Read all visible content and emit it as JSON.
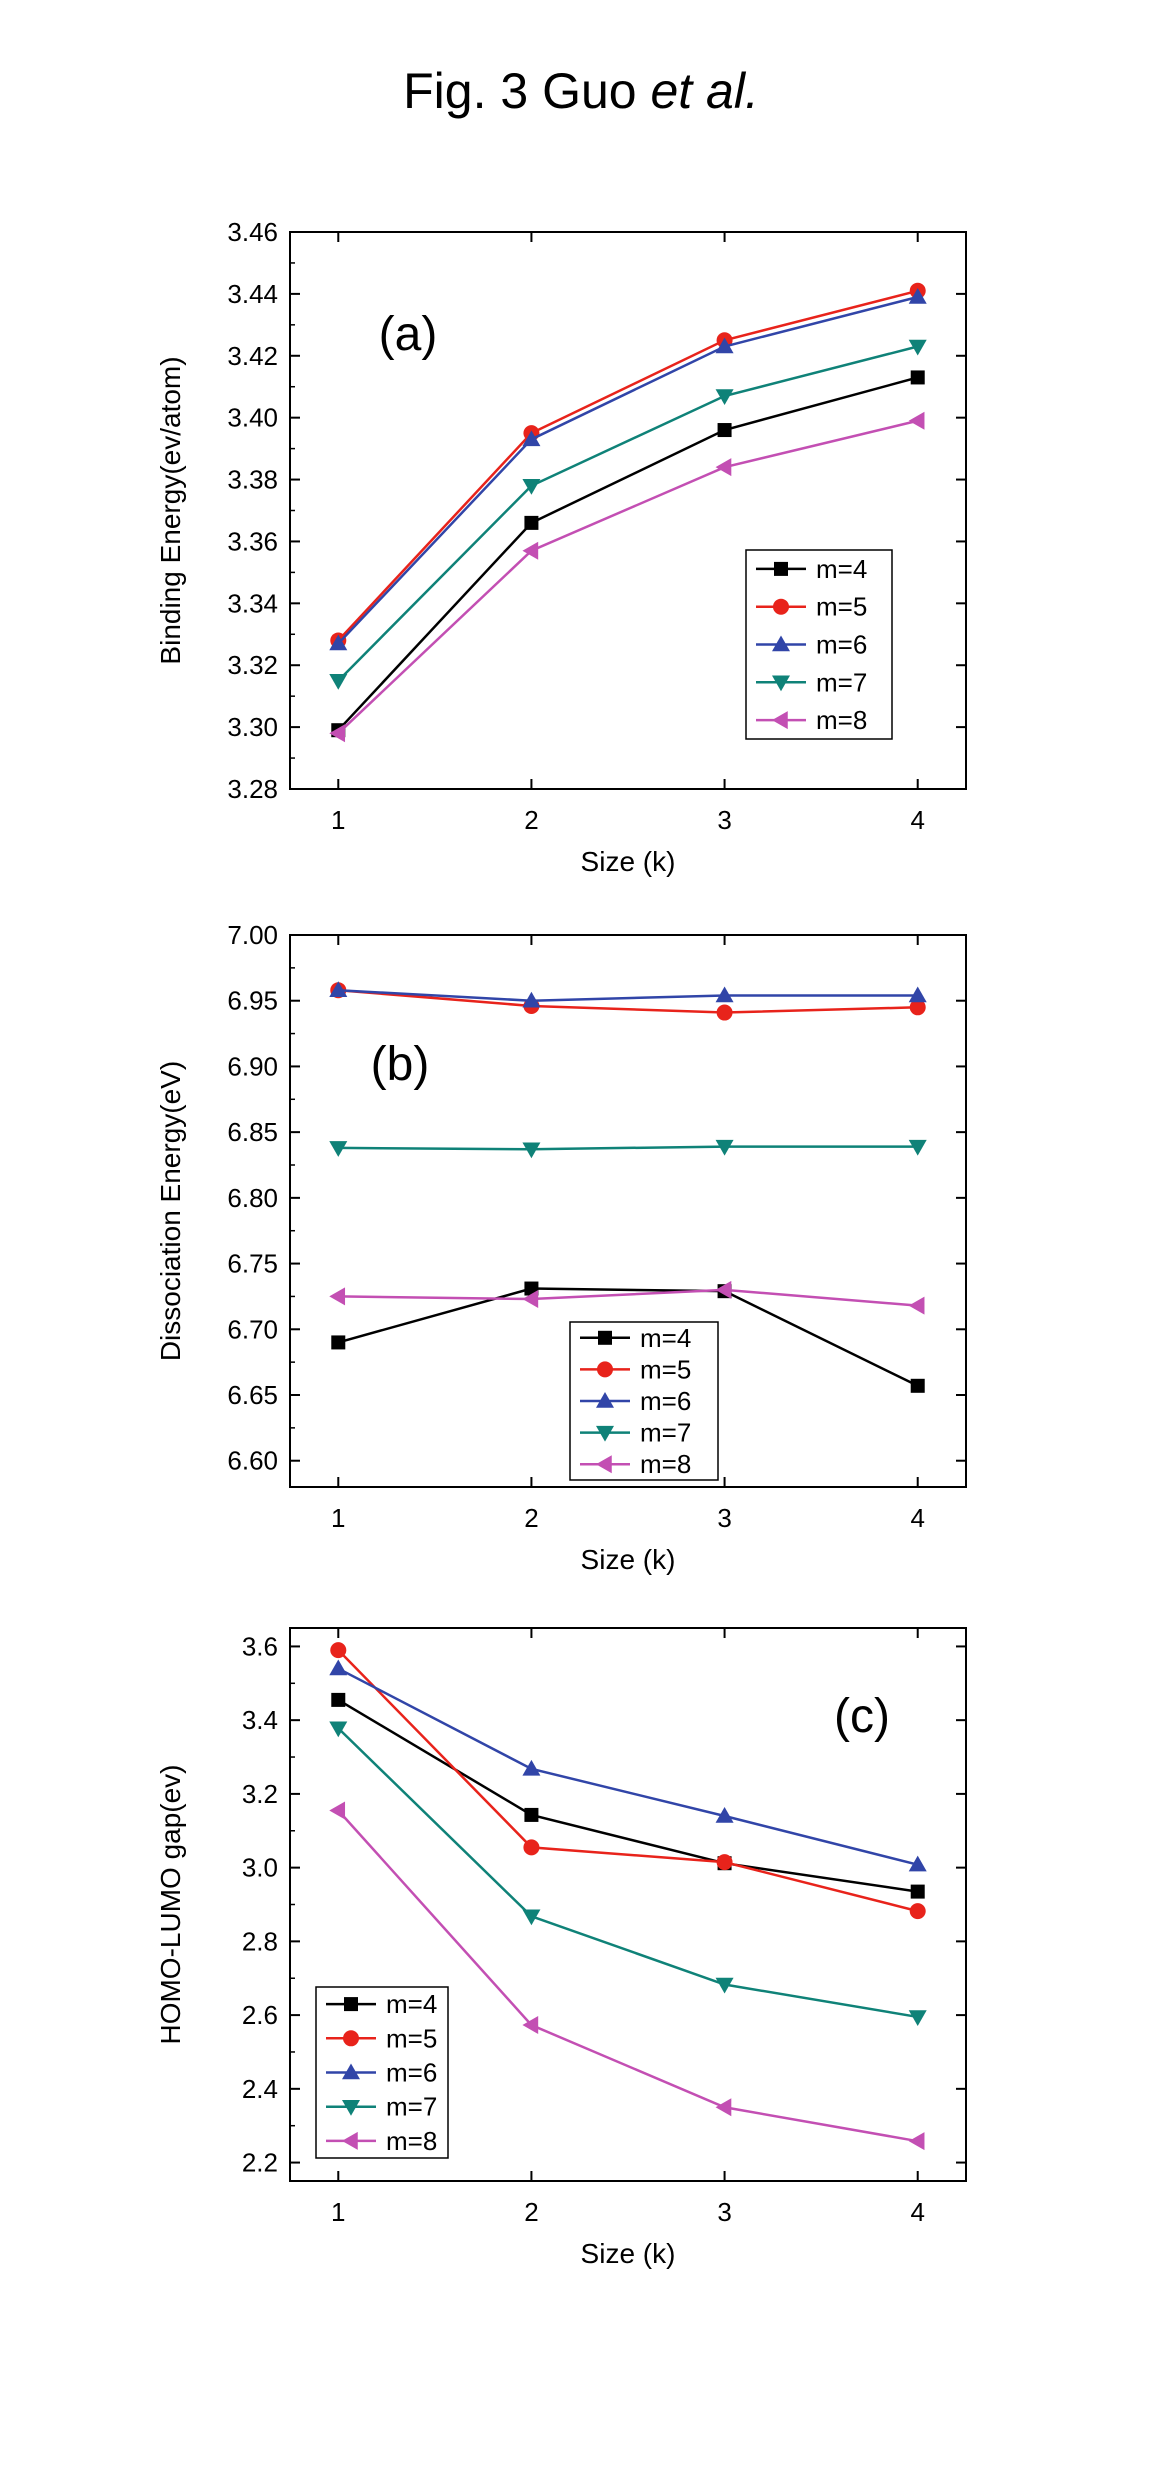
{
  "figure": {
    "title_prefix": "Fig. 3 Guo ",
    "title_italic": "et al."
  },
  "colors": {
    "m4": "#000000",
    "m5": "#e8231b",
    "m6": "#3145a8",
    "m7": "#0f8278",
    "m8": "#c34fb3"
  },
  "chart_data": [
    {
      "type": "line",
      "panel_label": "(a)",
      "title": "",
      "xlabel": "Size (k)",
      "ylabel": "Binding Energy(ev/atom)",
      "x": [
        1,
        2,
        3,
        4
      ],
      "xlim": [
        0.75,
        4.25
      ],
      "ylim": [
        3.28,
        3.46
      ],
      "yticks": [
        "3.28",
        "3.30",
        "3.32",
        "3.34",
        "3.36",
        "3.38",
        "3.40",
        "3.42",
        "3.44",
        "3.46"
      ],
      "xticks": [
        "1",
        "2",
        "3",
        "4"
      ],
      "legend_position": "right",
      "series": [
        {
          "name": "m=4",
          "color": "#000000",
          "marker": "square",
          "values": [
            3.299,
            3.366,
            3.396,
            3.413
          ]
        },
        {
          "name": "m=5",
          "color": "#e8231b",
          "marker": "circle",
          "values": [
            3.328,
            3.395,
            3.425,
            3.441
          ]
        },
        {
          "name": "m=6",
          "color": "#3145a8",
          "marker": "triangle-up",
          "values": [
            3.327,
            3.393,
            3.423,
            3.439
          ]
        },
        {
          "name": "m=7",
          "color": "#0f8278",
          "marker": "triangle-down",
          "values": [
            3.315,
            3.378,
            3.407,
            3.423
          ]
        },
        {
          "name": "m=8",
          "color": "#c34fb3",
          "marker": "triangle-left",
          "values": [
            3.298,
            3.357,
            3.384,
            3.399
          ]
        }
      ]
    },
    {
      "type": "line",
      "panel_label": "(b)",
      "title": "",
      "xlabel": "Size (k)",
      "ylabel": "Dissociation Energy(eV)",
      "x": [
        1,
        2,
        3,
        4
      ],
      "xlim": [
        0.75,
        4.25
      ],
      "ylim": [
        6.58,
        7.0
      ],
      "yticks": [
        "6.60",
        "6.65",
        "6.70",
        "6.75",
        "6.80",
        "6.85",
        "6.90",
        "6.95",
        "7.00"
      ],
      "xticks": [
        "1",
        "2",
        "3",
        "4"
      ],
      "legend_position": "bottom-center",
      "series": [
        {
          "name": "m=4",
          "color": "#000000",
          "marker": "square",
          "values": [
            6.69,
            6.731,
            6.729,
            6.657
          ]
        },
        {
          "name": "m=5",
          "color": "#e8231b",
          "marker": "circle",
          "values": [
            6.958,
            6.946,
            6.941,
            6.945
          ]
        },
        {
          "name": "m=6",
          "color": "#3145a8",
          "marker": "triangle-up",
          "values": [
            6.958,
            6.95,
            6.954,
            6.954
          ]
        },
        {
          "name": "m=7",
          "color": "#0f8278",
          "marker": "triangle-down",
          "values": [
            6.838,
            6.837,
            6.839,
            6.839
          ]
        },
        {
          "name": "m=8",
          "color": "#c34fb3",
          "marker": "triangle-left",
          "values": [
            6.725,
            6.723,
            6.73,
            6.718
          ]
        }
      ]
    },
    {
      "type": "line",
      "panel_label": "(c)",
      "title": "",
      "xlabel": "Size (k)",
      "ylabel": "HOMO-LUMO gap(ev)",
      "x": [
        1,
        2,
        3,
        4
      ],
      "xlim": [
        0.75,
        4.25
      ],
      "ylim": [
        2.15,
        3.65
      ],
      "yticks": [
        "2.2",
        "2.4",
        "2.6",
        "2.8",
        "3.0",
        "3.2",
        "3.4",
        "3.6"
      ],
      "xticks": [
        "1",
        "2",
        "3",
        "4"
      ],
      "legend_position": "bottom-left",
      "series": [
        {
          "name": "m=4",
          "color": "#000000",
          "marker": "square",
          "values": [
            3.455,
            3.143,
            3.012,
            2.935
          ]
        },
        {
          "name": "m=5",
          "color": "#e8231b",
          "marker": "circle",
          "values": [
            3.59,
            3.055,
            3.015,
            2.882
          ]
        },
        {
          "name": "m=6",
          "color": "#3145a8",
          "marker": "triangle-up",
          "values": [
            3.54,
            3.268,
            3.14,
            3.008
          ]
        },
        {
          "name": "m=7",
          "color": "#0f8278",
          "marker": "triangle-down",
          "values": [
            3.378,
            2.868,
            2.683,
            2.595
          ]
        },
        {
          "name": "m=8",
          "color": "#c34fb3",
          "marker": "triangle-left",
          "values": [
            3.155,
            2.573,
            2.35,
            2.258
          ]
        }
      ]
    }
  ]
}
